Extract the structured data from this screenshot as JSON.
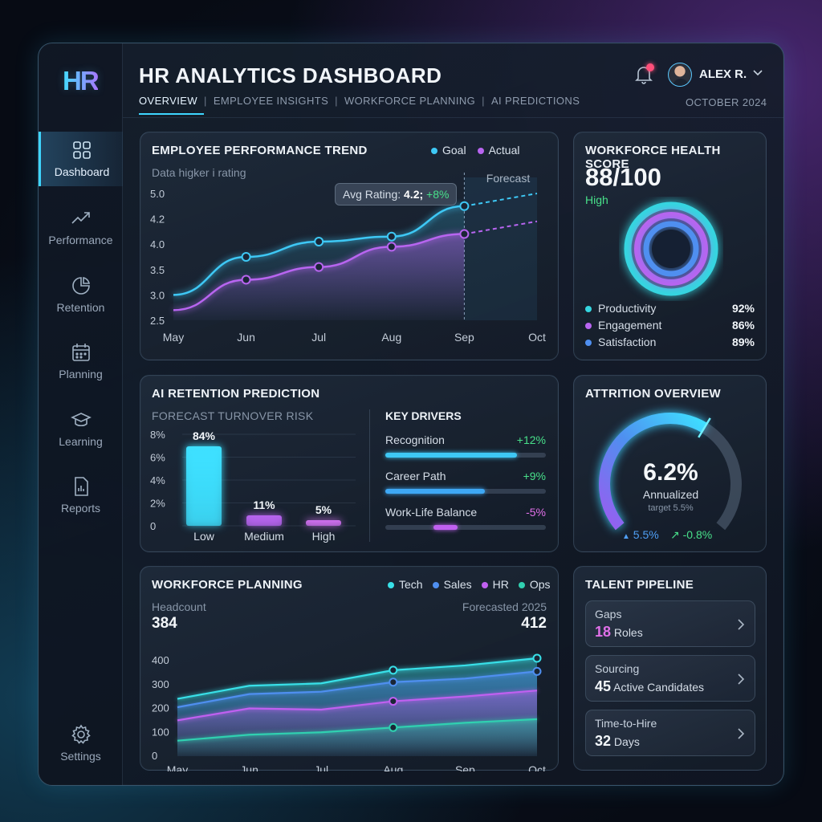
{
  "app": {
    "logo": "HR",
    "title": "HR ANALYTICS DASHBOARD",
    "date": "OCTOBER 2024",
    "user": "ALEX R."
  },
  "tabs": [
    "OVERVIEW",
    "EMPLOYEE INSIGHTS",
    "WORKFORCE PLANNING",
    "AI PREDICTIONS"
  ],
  "tab_separator": "|",
  "sidebar": {
    "items": [
      {
        "label": "Dashboard",
        "icon": "grid-icon",
        "active": true
      },
      {
        "label": "Performance",
        "icon": "trend-icon"
      },
      {
        "label": "Retention",
        "icon": "retention-icon"
      },
      {
        "label": "Planning",
        "icon": "calendar-icon"
      },
      {
        "label": "Learning",
        "icon": "graduation-cap-icon"
      },
      {
        "label": "Reports",
        "icon": "report-icon"
      }
    ],
    "settings": {
      "label": "Settings",
      "icon": "gear-icon"
    }
  },
  "performance": {
    "title": "EMPLOYEE PERFORMANCE TREND",
    "subtitle": "Data higker i rating",
    "forecast_label": "Forecast",
    "tooltip_label": "Avg Rating:",
    "tooltip_value": "4.2;",
    "tooltip_change": "+8%",
    "legend": [
      {
        "name": "Goal",
        "color": "#3ec8f5"
      },
      {
        "name": "Actual",
        "color": "#b865f0"
      }
    ]
  },
  "health": {
    "title": "WORKFORCE HEALTH SCORE",
    "score": "88/100",
    "status": "High",
    "metrics": [
      {
        "label": "Productivity",
        "value": "92%",
        "color": "#35d6e0"
      },
      {
        "label": "Engagement",
        "value": "86%",
        "color": "#b865f0"
      },
      {
        "label": "Satisfaction",
        "value": "89%",
        "color": "#4f8ff0"
      }
    ]
  },
  "retention": {
    "title": "AI RETENTION PREDICTION",
    "subtitle": "FORECAST TURNOVER RISK",
    "drivers_title": "KEY DRIVERS",
    "drivers": [
      {
        "label": "Recognition",
        "change": "+12%",
        "fill": 0.82,
        "color": "#3ec8f5",
        "change_color": "#48e08a"
      },
      {
        "label": "Career Path",
        "change": "+9%",
        "fill": 0.62,
        "color": "#3ea8f5",
        "change_color": "#48e08a"
      },
      {
        "label": "Work-Life Balance",
        "change": "-5%",
        "fill": 0.15,
        "offset": 0.3,
        "color": "#c060f0",
        "change_color": "#e070e8"
      }
    ]
  },
  "attrition": {
    "title": "ATTRITION OVERVIEW",
    "value": "6.2%",
    "label": "Annualized",
    "target": "target 5.5%",
    "stat1": "5.5%",
    "stat2": "-0.8%",
    "gauge_fraction": 0.62
  },
  "planning": {
    "title": "WORKFORCE PLANNING",
    "headcount_label": "Headcount",
    "headcount": "384",
    "forecast_label": "Forecasted 2025",
    "forecast": "412",
    "legend": [
      {
        "name": "Tech",
        "color": "#38e0e8"
      },
      {
        "name": "Sales",
        "color": "#4f8ff0"
      },
      {
        "name": "HR",
        "color": "#c060f0"
      },
      {
        "name": "Ops",
        "color": "#30d0b0"
      }
    ]
  },
  "pipeline": {
    "title": "TALENT PIPELINE",
    "items": [
      {
        "label": "Gaps",
        "number": "18",
        "unit": "Roles",
        "accent": "#e070e8"
      },
      {
        "label": "Sourcing",
        "number": "45",
        "unit": "Active Candidates",
        "accent": "#f2f6fa"
      },
      {
        "label": "Time-to-Hire",
        "number": "32",
        "unit": "Days",
        "accent": "#f2f6fa"
      }
    ]
  },
  "chart_data": [
    {
      "type": "line",
      "x": [
        "May",
        "Jun",
        "Jul",
        "Aug",
        "Sep",
        "Oct"
      ],
      "ylim": [
        2.5,
        5.0
      ],
      "yticks": [
        "5.0",
        "4.2",
        "4.0",
        "3.5",
        "3.0",
        "2.5"
      ],
      "series": [
        {
          "name": "Goal",
          "values": [
            3.0,
            3.75,
            4.05,
            4.15,
            4.75,
            5.0
          ]
        },
        {
          "name": "Actual",
          "values": [
            2.7,
            3.3,
            3.55,
            3.95,
            4.2,
            4.45
          ]
        }
      ]
    },
    {
      "type": "bar",
      "categories": [
        "Low",
        "Medium",
        "High"
      ],
      "values": [
        84,
        11,
        5
      ],
      "value_labels": [
        "84%",
        "11%",
        "5%"
      ],
      "yticks": [
        "8%",
        "6%",
        "4%",
        "2%",
        "0"
      ]
    },
    {
      "type": "area",
      "x": [
        "May",
        "Jun",
        "Jul",
        "Aug",
        "Sep",
        "Oct"
      ],
      "ylim": [
        0,
        400
      ],
      "yticks": [
        "400",
        "300",
        "200",
        "100",
        "0"
      ],
      "series": [
        {
          "name": "Tech",
          "values": [
            240,
            295,
            305,
            360,
            380,
            410
          ]
        },
        {
          "name": "Sales",
          "values": [
            205,
            260,
            270,
            310,
            325,
            355
          ]
        },
        {
          "name": "HR",
          "values": [
            150,
            200,
            195,
            230,
            250,
            275
          ]
        },
        {
          "name": "Ops",
          "values": [
            65,
            90,
            100,
            120,
            140,
            155
          ]
        }
      ]
    }
  ]
}
